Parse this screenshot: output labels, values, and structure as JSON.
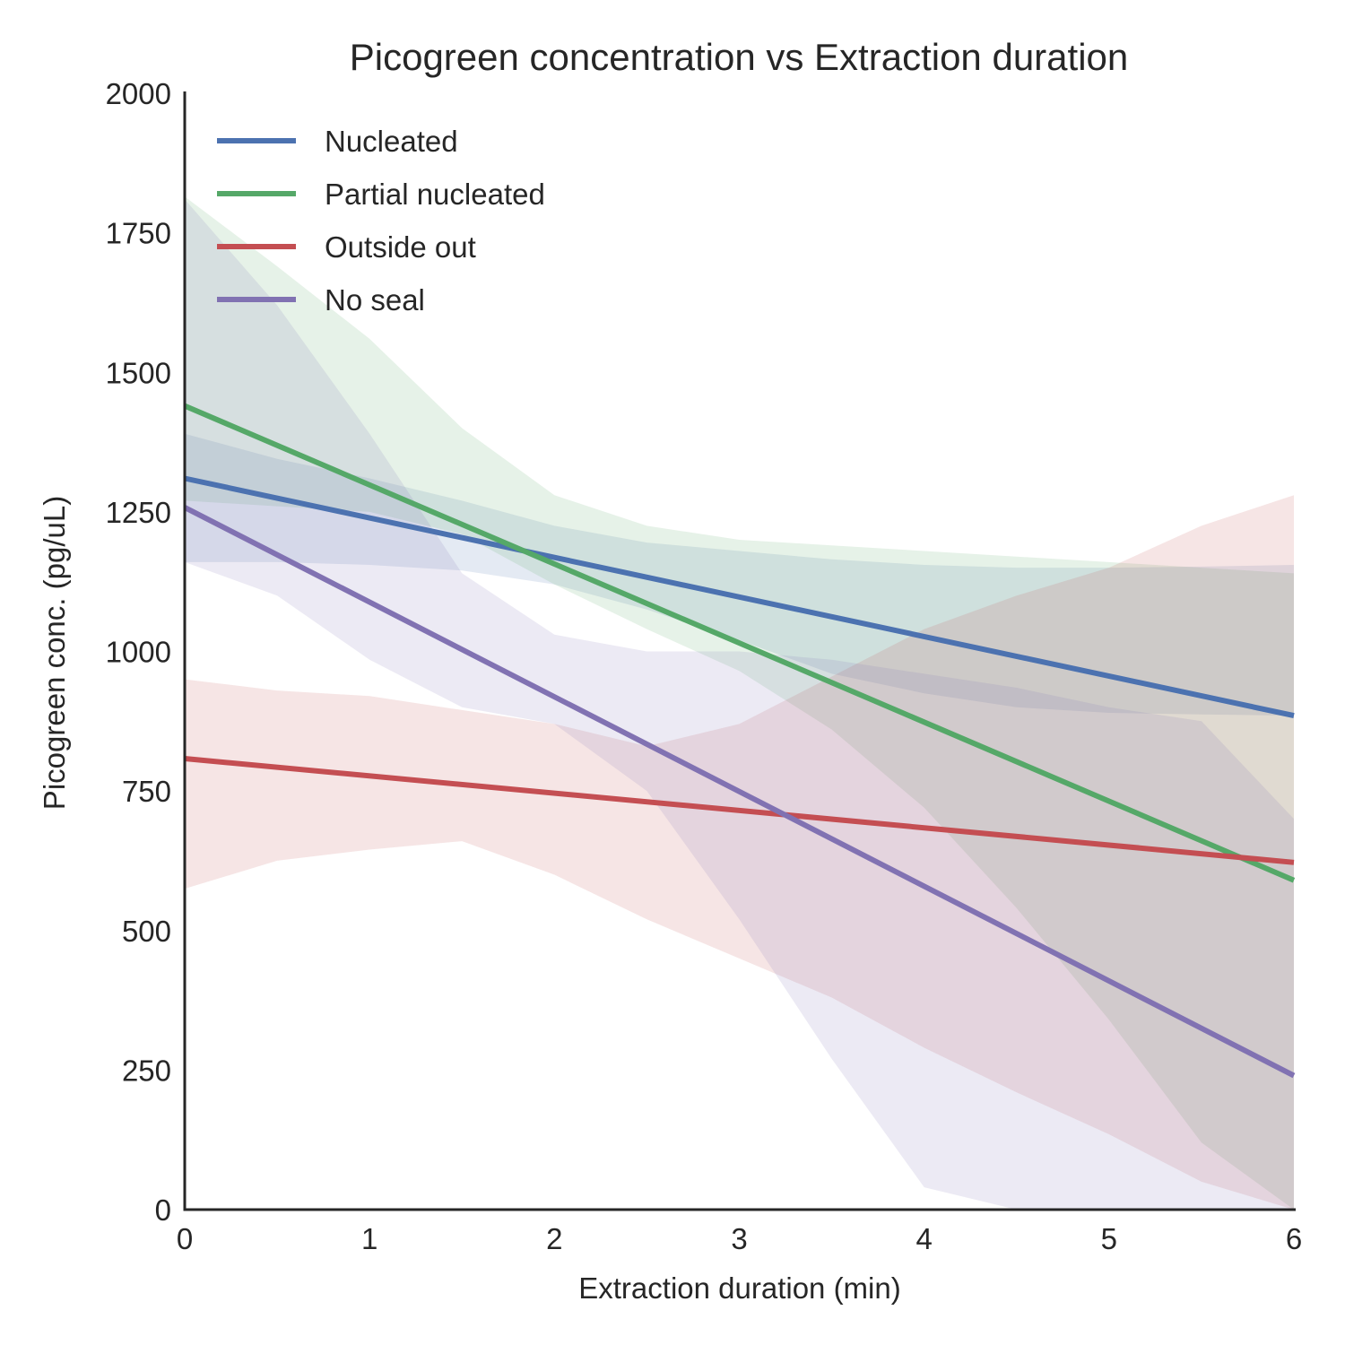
{
  "chart_data": {
    "type": "line",
    "title": "Picogreen concentration vs Extraction duration",
    "xlabel": "Extraction duration (min)",
    "ylabel": "Picogreen conc. (pg/uL)",
    "xlim": [
      0,
      6
    ],
    "ylim": [
      0,
      2000
    ],
    "xticks": [
      0,
      1,
      2,
      3,
      4,
      5,
      6
    ],
    "yticks": [
      0,
      250,
      500,
      750,
      1000,
      1250,
      1500,
      1750,
      2000
    ],
    "xtick_labels": [
      "0",
      "1",
      "2",
      "3",
      "4",
      "5",
      "6"
    ],
    "ytick_labels": [
      "0",
      "250",
      "500",
      "750",
      "1000",
      "1250",
      "1500",
      "1750",
      "2000"
    ],
    "grid": false,
    "legend_position": "top-left",
    "series": [
      {
        "name": "Nucleated",
        "color": "#4c72b0",
        "line": [
          [
            0,
            1310
          ],
          [
            6,
            885
          ]
        ],
        "band_x": [
          0,
          0.5,
          1,
          1.5,
          2,
          2.5,
          3,
          3.5,
          4,
          4.5,
          5,
          5.5,
          6
        ],
        "band_upper": [
          1390,
          1345,
          1310,
          1270,
          1225,
          1195,
          1180,
          1165,
          1155,
          1150,
          1150,
          1152,
          1155
        ],
        "band_lower": [
          1160,
          1160,
          1155,
          1145,
          1120,
          1075,
          1020,
          960,
          925,
          900,
          890,
          887,
          885
        ]
      },
      {
        "name": "Partial nucleated",
        "color": "#55a868",
        "line": [
          [
            0,
            1440
          ],
          [
            6,
            590
          ]
        ],
        "band_x": [
          0,
          0.5,
          1,
          1.5,
          2,
          2.5,
          3,
          3.5,
          4,
          4.5,
          5,
          5.5,
          6
        ],
        "band_upper": [
          1815,
          1690,
          1560,
          1400,
          1280,
          1225,
          1200,
          1190,
          1180,
          1170,
          1160,
          1150,
          1140
        ],
        "band_lower": [
          1270,
          1260,
          1250,
          1210,
          1120,
          1040,
          965,
          860,
          720,
          540,
          340,
          120,
          0
        ]
      },
      {
        "name": "Outside out",
        "color": "#c44e52",
        "line": [
          [
            0,
            808
          ],
          [
            6,
            622
          ]
        ],
        "band_x": [
          0,
          0.5,
          1,
          1.5,
          2,
          2.5,
          3,
          3.5,
          4,
          4.5,
          5,
          5.5,
          6
        ],
        "band_upper": [
          950,
          930,
          920,
          895,
          870,
          830,
          870,
          955,
          1040,
          1100,
          1150,
          1225,
          1280
        ],
        "band_lower": [
          575,
          625,
          645,
          660,
          600,
          520,
          450,
          380,
          290,
          210,
          135,
          50,
          0
        ]
      },
      {
        "name": "No seal",
        "color": "#8172b2",
        "line": [
          [
            0,
            1258
          ],
          [
            6,
            240
          ]
        ],
        "band_x": [
          0,
          0.5,
          1,
          1.5,
          2,
          2.5,
          3,
          3.5,
          4,
          4.5,
          5,
          5.5,
          6
        ],
        "band_upper": [
          1810,
          1620,
          1390,
          1140,
          1030,
          1000,
          1000,
          985,
          960,
          935,
          900,
          875,
          700
        ],
        "band_lower": [
          1160,
          1100,
          985,
          900,
          870,
          750,
          520,
          270,
          40,
          0,
          0,
          0,
          0
        ]
      }
    ]
  }
}
